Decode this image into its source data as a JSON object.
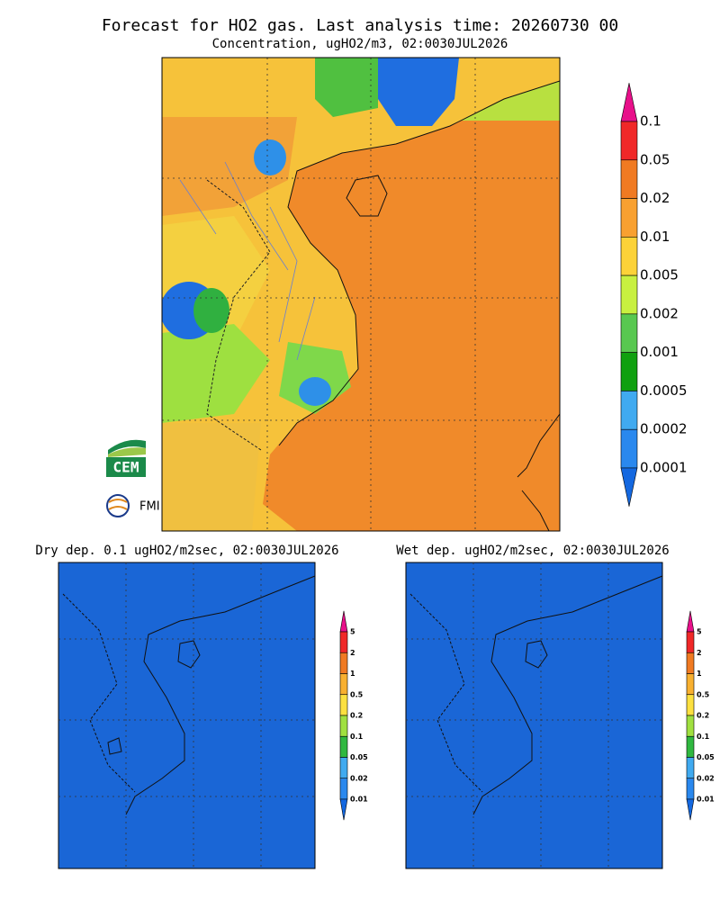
{
  "header": {
    "title": "Forecast for HO2 gas. Last analysis time: 20260730 00",
    "subtitle": "Concentration, ugHO2/m3, 02:0030JUL2026"
  },
  "main_colorbar": {
    "labels": [
      "0.1",
      "0.05",
      "0.02",
      "0.01",
      "0.005",
      "0.002",
      "0.001",
      "0.0005",
      "0.0002",
      "0.0001"
    ]
  },
  "panels": [
    {
      "title": "Dry dep. 0.1 ugHO2/m2sec, 02:0030JUL2026",
      "colorbar_labels": [
        "5",
        "2",
        "1",
        "0.5",
        "0.2",
        "0.1",
        "0.05",
        "0.02",
        "0.01"
      ]
    },
    {
      "title": "Wet dep. ugHO2/m2sec, 02:0030JUL2026",
      "colorbar_labels": [
        "5",
        "2",
        "1",
        "0.5",
        "0.2",
        "0.1",
        "0.05",
        "0.02",
        "0.01"
      ]
    }
  ],
  "logos": {
    "cem": "CEM",
    "fmi": "FMI"
  }
}
